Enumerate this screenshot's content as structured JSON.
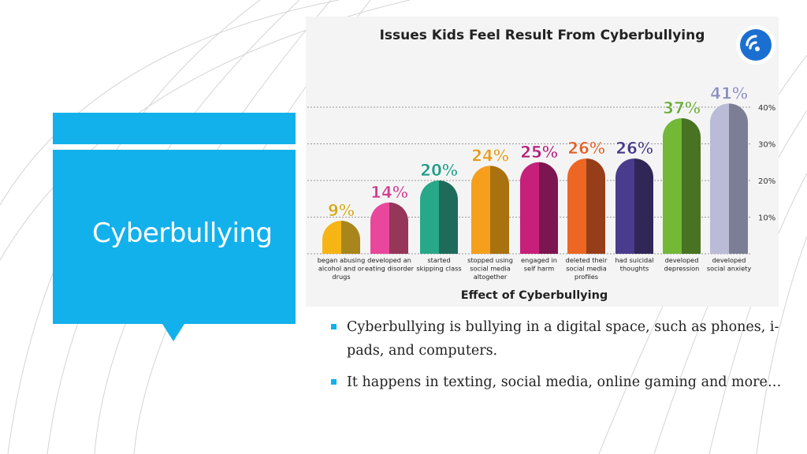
{
  "slide": {
    "title": "Cyberbullying",
    "bullets": [
      "Cyberbullying is bullying in a digital space, such as phones, i-pads, and computers.",
      "It happens in texting, social media, online gaming and more…"
    ],
    "accent_color": "#13b1ec"
  },
  "logo": {
    "icon": "wifi-signal-icon",
    "color": "#1b6fd1"
  },
  "chart_data": {
    "type": "bar",
    "title": "Issues Kids Feel Result From Cyberbullying",
    "xlabel": "Effect of Cyberbullying",
    "ylabel": "",
    "ylim": [
      0,
      45
    ],
    "yticks": [
      10,
      20,
      30,
      40
    ],
    "ytick_labels": [
      "10%",
      "20%",
      "30%",
      "40%"
    ],
    "grid": true,
    "categories": [
      [
        "began abusing",
        "alcohol and or",
        "drugs"
      ],
      [
        "developed an",
        "eating disorder"
      ],
      [
        "started",
        "skipping class"
      ],
      [
        "stopped using",
        "social media",
        "altogether"
      ],
      [
        "engaged in",
        "self harm"
      ],
      [
        "deleted their",
        "social media",
        "profiles"
      ],
      [
        "had suicidal",
        "thoughts"
      ],
      [
        "developed",
        "depression"
      ],
      [
        "developed",
        "social anxiety"
      ]
    ],
    "values": [
      9,
      14,
      20,
      24,
      25,
      26,
      26,
      37,
      41
    ],
    "value_labels": [
      "9%",
      "14%",
      "20%",
      "24%",
      "25%",
      "26%",
      "26%",
      "37%",
      "41%"
    ],
    "colors": [
      "#f7b515",
      "#e8479c",
      "#27a889",
      "#f59f1c",
      "#c6207b",
      "#ec6624",
      "#4a3c8c",
      "#74b838",
      "#babbd6"
    ],
    "shade_colors": [
      "#a9861b",
      "#963659",
      "#1e6b5c",
      "#a9720e",
      "#7c1650",
      "#963e1a",
      "#302757",
      "#477322",
      "#7c7e96"
    ],
    "label_colors": [
      "#d6a71b",
      "#cf3d8f",
      "#1f9b86",
      "#e59a1a",
      "#b21f7a",
      "#e0622b",
      "#453a86",
      "#6bac39",
      "#8a8fbf"
    ]
  }
}
